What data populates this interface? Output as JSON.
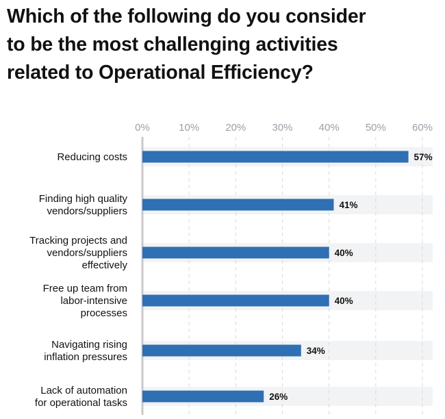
{
  "title_lines": [
    "Which of the following do you consider",
    "to be the most challenging activities",
    "related to Operational Efficiency?"
  ],
  "colors": {
    "bar": "#2f6fb3",
    "track": "#f2f3f5",
    "grid": "#d9d9d9",
    "axis": "#c9c9c9"
  },
  "chart_data": {
    "type": "bar",
    "orientation": "horizontal",
    "title": "Which of the following do you consider to be the most challenging activities related to Operational Efficiency?",
    "categories": [
      "Reducing costs",
      "Finding high quality vendors/suppliers",
      "Tracking projects and vendors/suppliers effectively",
      "Free up team from labor-intensive processes",
      "Navigating rising inflation pressures",
      "Lack of automation for operational tasks"
    ],
    "category_lines": [
      [
        "Reducing costs"
      ],
      [
        "Finding high quality",
        "vendors/suppliers"
      ],
      [
        "Tracking projects and",
        "vendors/suppliers",
        "effectively"
      ],
      [
        "Free up team from",
        "labor-intensive",
        "processes"
      ],
      [
        "Navigating rising",
        "inflation pressures"
      ],
      [
        "Lack of automation",
        "for operational tasks"
      ]
    ],
    "values": [
      57,
      41,
      40,
      40,
      34,
      26
    ],
    "value_labels": [
      "57%",
      "41%",
      "40%",
      "40%",
      "34%",
      "26%"
    ],
    "xlim": [
      0,
      60
    ],
    "xticks": [
      0,
      10,
      20,
      30,
      40,
      50,
      60
    ],
    "xtick_labels": [
      "0%",
      "10%",
      "20%",
      "30%",
      "40%",
      "50%",
      "60%"
    ],
    "xaxis_position": "top",
    "grid": true,
    "legend": "none"
  }
}
